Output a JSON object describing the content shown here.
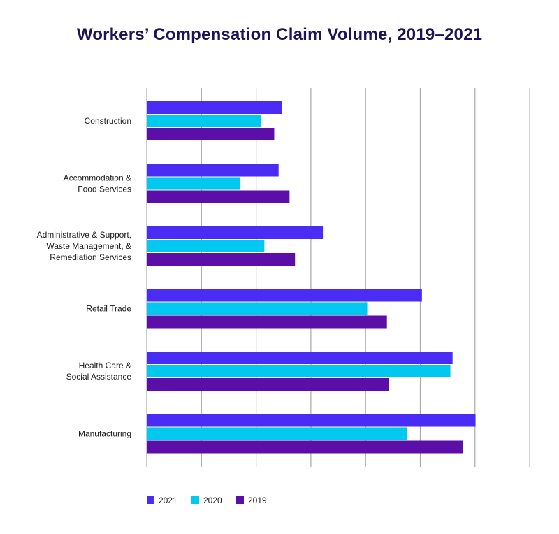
{
  "chart_data": {
    "type": "bar",
    "orientation": "horizontal",
    "title": "Workers’ Compensation Claim Volume, 2019–2021",
    "categories": [
      [
        "Construction"
      ],
      [
        "Accommodation &",
        "Food Services"
      ],
      [
        "Administrative & Support,",
        "Waste Management, &",
        "Remediation Services"
      ],
      [
        "Retail Trade"
      ],
      [
        "Health Care &",
        "Social Assistance"
      ],
      [
        "Manufacturing"
      ]
    ],
    "series": [
      {
        "name": "2021",
        "color": "#4a2cf5",
        "values": [
          2.47,
          2.41,
          3.22,
          5.03,
          5.59,
          6.01
        ]
      },
      {
        "name": "2020",
        "color": "#00c8ee",
        "values": [
          2.09,
          1.7,
          2.15,
          4.03,
          5.55,
          4.76
        ]
      },
      {
        "name": "2019",
        "color": "#5b0fa8",
        "values": [
          2.33,
          2.61,
          2.71,
          4.39,
          4.42,
          5.78
        ]
      }
    ],
    "xlim": [
      0,
      7
    ],
    "grid": true,
    "show_tick_labels": false,
    "legend_position": "bottom-left"
  }
}
